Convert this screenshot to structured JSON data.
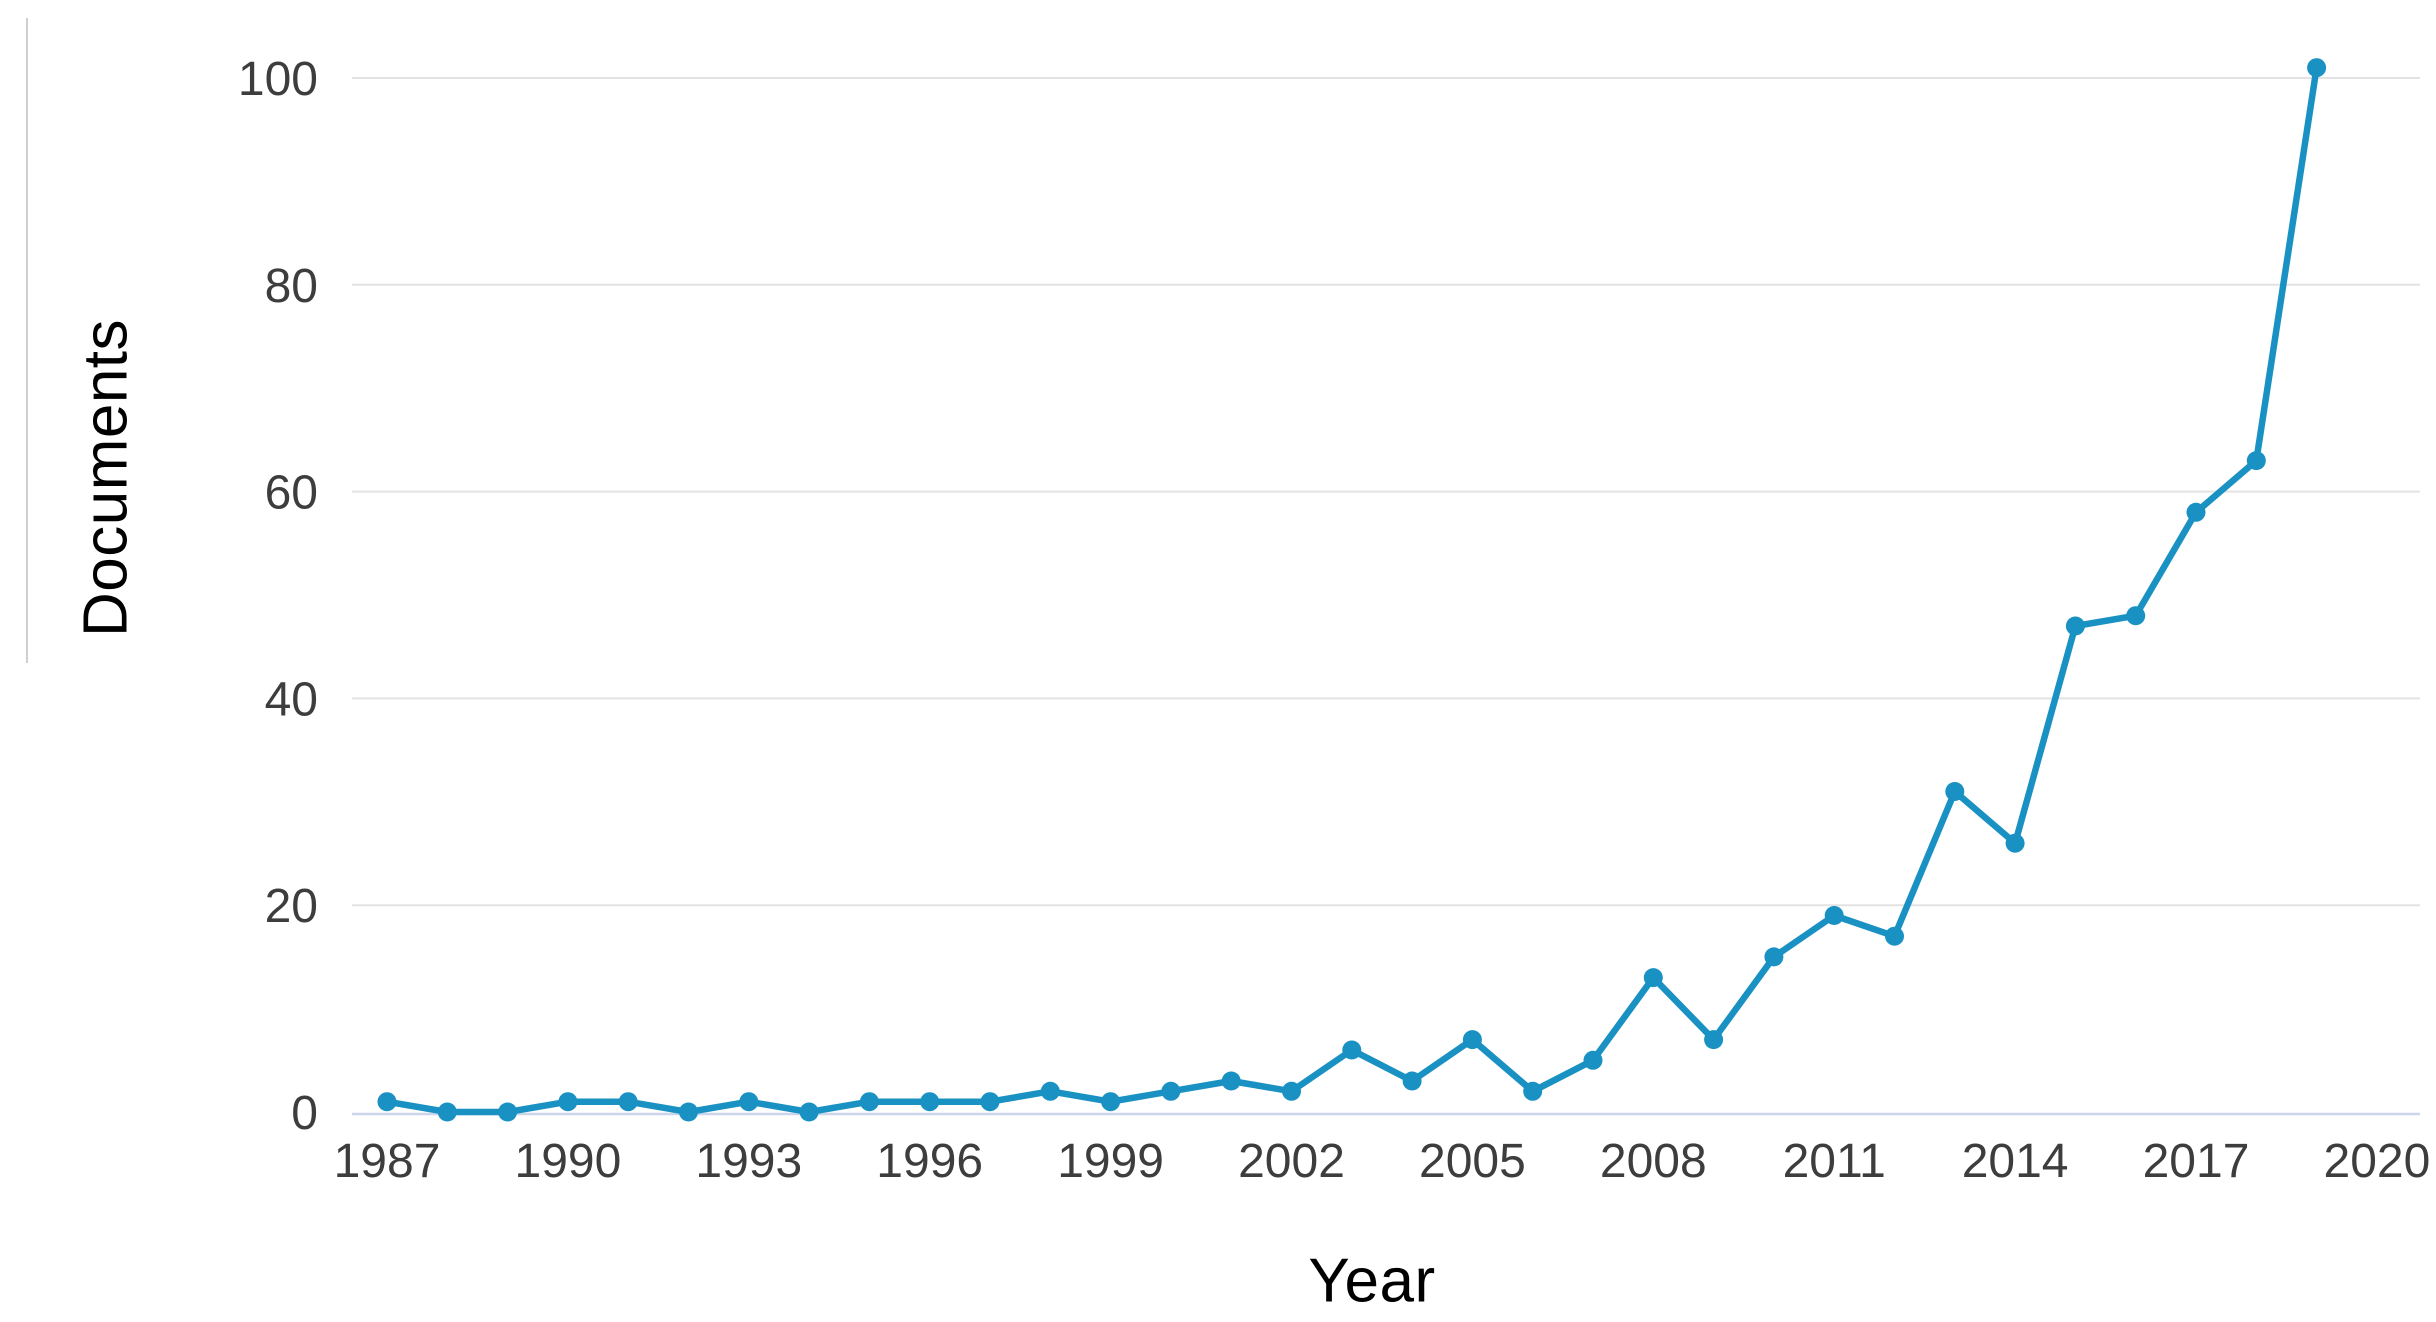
{
  "page": {
    "background": "#ffffff"
  },
  "chart_data": {
    "type": "line",
    "title": "",
    "xlabel": "Year",
    "ylabel": "Documents",
    "x": [
      1987,
      1988,
      1989,
      1990,
      1991,
      1992,
      1993,
      1994,
      1995,
      1996,
      1997,
      1998,
      1999,
      2000,
      2001,
      2002,
      2003,
      2004,
      2005,
      2006,
      2007,
      2008,
      2009,
      2010,
      2011,
      2012,
      2013,
      2014,
      2015,
      2016,
      2017,
      2018,
      2019
    ],
    "values": [
      1,
      0,
      0,
      1,
      1,
      0,
      1,
      0,
      1,
      1,
      1,
      2,
      1,
      2,
      3,
      2,
      6,
      3,
      7,
      2,
      5,
      13,
      7,
      15,
      19,
      17,
      31,
      26,
      47,
      48,
      58,
      63,
      101
    ],
    "series_name": "Documents",
    "x_ticks": [
      1987,
      1990,
      1993,
      1996,
      1999,
      2002,
      2005,
      2008,
      2011,
      2014,
      2017,
      2020
    ],
    "y_ticks": [
      0,
      20,
      40,
      60,
      80,
      100
    ],
    "ylim": [
      0,
      100
    ],
    "xlim": [
      1987,
      2020
    ],
    "grid": "horizontal-only",
    "legend": "none",
    "colors": {
      "line": "#1991c2",
      "marker": "#1991c2",
      "gridline": "#e3e3e3",
      "axis_line": "#ccd6eb",
      "tick_label": "#3d3d3d",
      "axis_title": "#333333",
      "page_edge_line": "#c7c7c7"
    }
  }
}
